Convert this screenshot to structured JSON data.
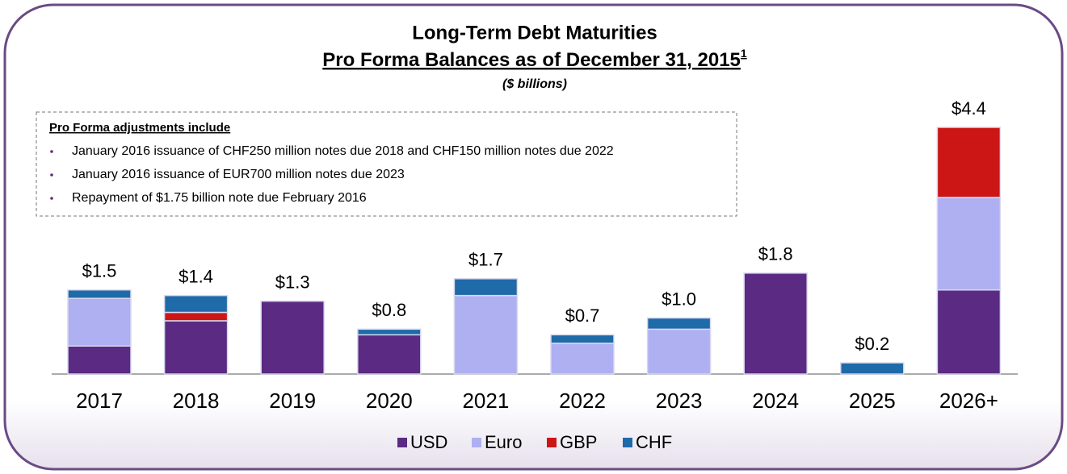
{
  "chart_data": {
    "type": "stacked_bar",
    "title": "Long-Term Debt Maturities",
    "subtitle": "Pro Forma Balances as of December 31, 2015",
    "footnote_mark": "1",
    "units": "($ billions)",
    "note_heading": "Pro Forma adjustments include",
    "notes": [
      "January 2016 issuance of CHF250 million notes due 2018 and CHF150 million notes due 2022",
      "January 2016 issuance of EUR700 million notes due 2023",
      "Repayment of $1.75 billion note due February 2016"
    ],
    "categories": [
      "2017",
      "2018",
      "2019",
      "2020",
      "2021",
      "2022",
      "2023",
      "2024",
      "2025",
      "2026+"
    ],
    "total_labels": [
      "$1.5",
      "$1.4",
      "$1.3",
      "$0.8",
      "$1.7",
      "$0.7",
      "$1.0",
      "$1.8",
      "$0.2",
      "$4.4"
    ],
    "series": [
      {
        "name": "USD",
        "color": "#5b2a82",
        "values": [
          0.5,
          0.95,
          1.3,
          0.7,
          null,
          null,
          null,
          1.8,
          null,
          1.5
        ]
      },
      {
        "name": "Euro",
        "color": "#aeb0f2",
        "values": [
          0.85,
          null,
          null,
          null,
          1.4,
          0.55,
          0.8,
          null,
          null,
          1.65
        ]
      },
      {
        "name": "GBP",
        "color": "#cc1616",
        "values": [
          null,
          0.15,
          null,
          null,
          null,
          null,
          null,
          null,
          null,
          1.25
        ]
      },
      {
        "name": "CHF",
        "color": "#1f6aa8",
        "values": [
          0.15,
          0.3,
          null,
          0.1,
          0.3,
          0.15,
          0.2,
          null,
          0.2,
          null
        ]
      }
    ]
  }
}
